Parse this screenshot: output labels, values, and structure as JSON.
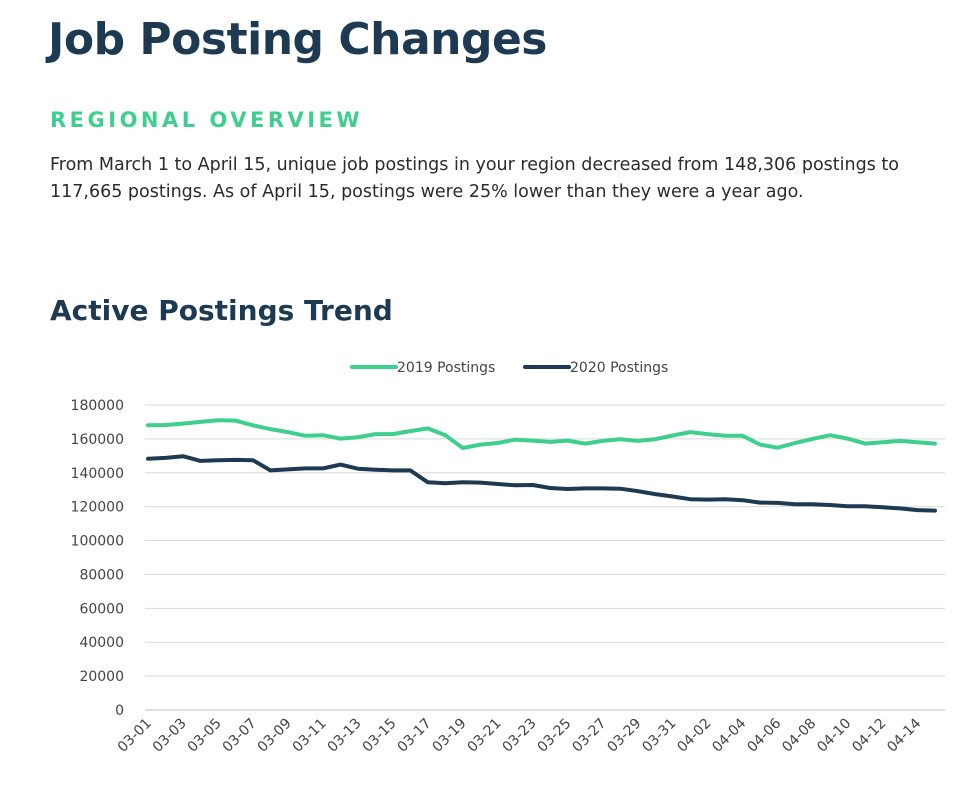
{
  "header": {
    "title": "Job Posting Changes",
    "subtitle": "REGIONAL OVERVIEW",
    "summary": "From March 1 to April 15, unique job postings in your region decreased from 148,306 postings to 117,665 postings. As of April 15, postings were 25% lower than they were a year ago."
  },
  "chart_data": {
    "type": "line",
    "title": "Active Postings Trend",
    "xlabel": "",
    "ylabel": "",
    "ylim": [
      0,
      180000
    ],
    "yticks": [
      0,
      20000,
      40000,
      60000,
      80000,
      100000,
      120000,
      140000,
      160000,
      180000
    ],
    "grid": true,
    "legend_position": "top-center",
    "x": [
      "03-01",
      "03-02",
      "03-03",
      "03-04",
      "03-05",
      "03-06",
      "03-07",
      "03-08",
      "03-09",
      "03-10",
      "03-11",
      "03-12",
      "03-13",
      "03-14",
      "03-15",
      "03-16",
      "03-17",
      "03-18",
      "03-19",
      "03-20",
      "03-21",
      "03-22",
      "03-23",
      "03-24",
      "03-25",
      "03-26",
      "03-27",
      "03-28",
      "03-29",
      "03-30",
      "03-31",
      "04-01",
      "04-02",
      "04-03",
      "04-04",
      "04-05",
      "04-06",
      "04-07",
      "04-08",
      "04-09",
      "04-10",
      "04-11",
      "04-12",
      "04-13",
      "04-14",
      "04-15"
    ],
    "x_tick_labels": [
      "03-01",
      "03-03",
      "03-05",
      "03-07",
      "03-09",
      "03-11",
      "03-13",
      "03-15",
      "03-17",
      "03-19",
      "03-21",
      "03-23",
      "03-25",
      "03-27",
      "03-29",
      "03-31",
      "04-02",
      "04-04",
      "04-06",
      "04-08",
      "04-10",
      "04-12",
      "04-14"
    ],
    "series": [
      {
        "name": "2019 Postings",
        "color": "#3ecf8e",
        "values": [
          168000,
          168200,
          169000,
          170000,
          171000,
          170800,
          168000,
          165800,
          164000,
          161800,
          162200,
          160200,
          161000,
          162800,
          162800,
          164600,
          166200,
          162200,
          154600,
          156600,
          157600,
          159600,
          159000,
          158200,
          159000,
          157200,
          158800,
          159800,
          158800,
          159800,
          162000,
          164000,
          162800,
          161800,
          161800,
          156600,
          154800,
          157600,
          160000,
          162200,
          160200,
          157200,
          158000,
          158800,
          158000,
          157200
        ]
      },
      {
        "name": "2020 Postings",
        "color": "#1d3a52",
        "values": [
          148306,
          148800,
          149800,
          147000,
          147400,
          147600,
          147400,
          141400,
          142000,
          142600,
          142600,
          144800,
          142400,
          141800,
          141400,
          141400,
          134400,
          133800,
          134400,
          134200,
          133400,
          132600,
          132800,
          131000,
          130400,
          130800,
          130800,
          130600,
          129200,
          127400,
          126000,
          124400,
          124200,
          124400,
          123800,
          122400,
          122200,
          121400,
          121400,
          121000,
          120200,
          120200,
          119600,
          119000,
          118000,
          117665
        ]
      }
    ]
  }
}
